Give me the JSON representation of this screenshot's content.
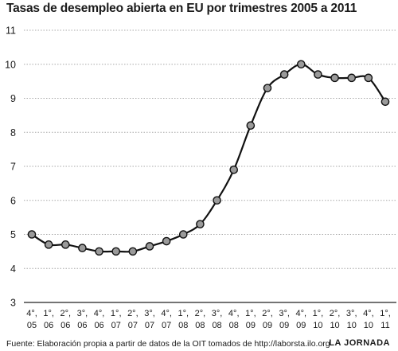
{
  "chart_data": {
    "type": "line",
    "title": "Tasas de desempleo abierta en EU por trimestres 2005 a 2011",
    "xlabel": "",
    "ylabel": "",
    "ylim": [
      3,
      11
    ],
    "yticks": [
      3,
      4,
      5,
      6,
      7,
      8,
      9,
      10,
      11
    ],
    "grid": true,
    "categories": [
      [
        "4°,",
        "05"
      ],
      [
        "1°,",
        "06"
      ],
      [
        "2°,",
        "06"
      ],
      [
        "3°,",
        "06"
      ],
      [
        "4°,",
        "06"
      ],
      [
        "1°,",
        "07"
      ],
      [
        "2°,",
        "07"
      ],
      [
        "3°,",
        "07"
      ],
      [
        "4°,",
        "07"
      ],
      [
        "1°,",
        "08"
      ],
      [
        "2°,",
        "08"
      ],
      [
        "3°,",
        "08"
      ],
      [
        "4°,",
        "08"
      ],
      [
        "1°,",
        "09"
      ],
      [
        "2°,",
        "09"
      ],
      [
        "3°,",
        "09"
      ],
      [
        "4°,",
        "09"
      ],
      [
        "1°,",
        "10"
      ],
      [
        "2°,",
        "10"
      ],
      [
        "3°,",
        "10"
      ],
      [
        "4°,",
        "10"
      ],
      [
        "1°,",
        "11"
      ]
    ],
    "values": [
      5.0,
      4.7,
      4.7,
      4.6,
      4.5,
      4.5,
      4.5,
      4.65,
      4.8,
      5.0,
      5.3,
      6.0,
      6.9,
      8.2,
      9.3,
      9.7,
      10.0,
      9.7,
      9.6,
      9.6,
      9.6,
      8.9
    ],
    "colors": {
      "line": "#111111",
      "marker_fill": "#9a9a9a",
      "grid": "#a8a8a8"
    }
  },
  "footer": {
    "source": "Fuente: Elaboración propia a partir de datos de la OIT tomados de http://laborsta.ilo.org",
    "brand": "LA JORNADA"
  }
}
